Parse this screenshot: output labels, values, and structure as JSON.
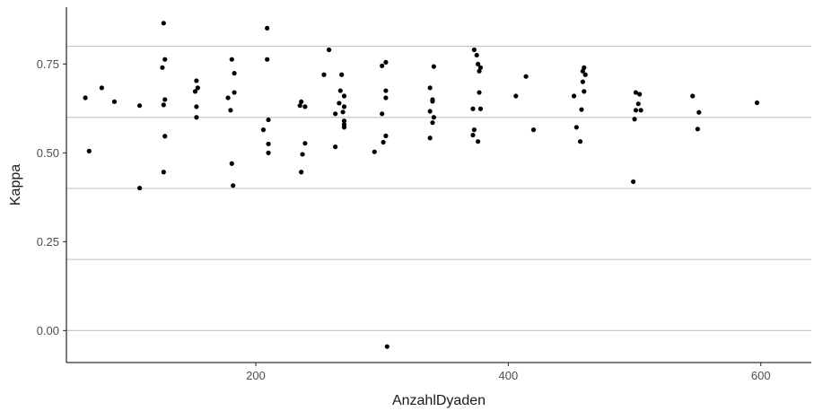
{
  "chart_data": {
    "type": "scatter",
    "xlabel": "AnzahlDyaden",
    "ylabel": "Kappa",
    "xlim": [
      50,
      640
    ],
    "ylim": [
      -0.09,
      0.91
    ],
    "x_ticks": [
      200,
      400,
      600
    ],
    "x_tick_labels": [
      "200",
      "400",
      "600"
    ],
    "y_ticks": [
      0.0,
      0.25,
      0.5,
      0.75
    ],
    "y_tick_labels": [
      "0.00",
      "0.25",
      "0.50",
      "0.75"
    ],
    "hlines": [
      0.0,
      0.2,
      0.4,
      0.6,
      0.8
    ],
    "grid": false,
    "point_color": "#000000",
    "line_color": "#c8c8c8",
    "points": [
      {
        "x": 65,
        "y": 0.655
      },
      {
        "x": 68,
        "y": 0.505
      },
      {
        "x": 78,
        "y": 0.683
      },
      {
        "x": 88,
        "y": 0.644
      },
      {
        "x": 108,
        "y": 0.633
      },
      {
        "x": 108,
        "y": 0.401
      },
      {
        "x": 127,
        "y": 0.865
      },
      {
        "x": 128,
        "y": 0.763
      },
      {
        "x": 126,
        "y": 0.74
      },
      {
        "x": 128,
        "y": 0.65
      },
      {
        "x": 127,
        "y": 0.635
      },
      {
        "x": 128,
        "y": 0.547
      },
      {
        "x": 127,
        "y": 0.446
      },
      {
        "x": 153,
        "y": 0.703
      },
      {
        "x": 154,
        "y": 0.683
      },
      {
        "x": 152,
        "y": 0.673
      },
      {
        "x": 153,
        "y": 0.63
      },
      {
        "x": 153,
        "y": 0.6
      },
      {
        "x": 178,
        "y": 0.655
      },
      {
        "x": 180,
        "y": 0.62
      },
      {
        "x": 181,
        "y": 0.763
      },
      {
        "x": 183,
        "y": 0.724
      },
      {
        "x": 183,
        "y": 0.67
      },
      {
        "x": 181,
        "y": 0.47
      },
      {
        "x": 182,
        "y": 0.408
      },
      {
        "x": 209,
        "y": 0.851
      },
      {
        "x": 209,
        "y": 0.763
      },
      {
        "x": 210,
        "y": 0.593
      },
      {
        "x": 206,
        "y": 0.565
      },
      {
        "x": 210,
        "y": 0.525
      },
      {
        "x": 210,
        "y": 0.5
      },
      {
        "x": 235,
        "y": 0.633
      },
      {
        "x": 236,
        "y": 0.644
      },
      {
        "x": 239,
        "y": 0.63
      },
      {
        "x": 239,
        "y": 0.527
      },
      {
        "x": 237,
        "y": 0.496
      },
      {
        "x": 236,
        "y": 0.446
      },
      {
        "x": 254,
        "y": 0.72
      },
      {
        "x": 258,
        "y": 0.79
      },
      {
        "x": 263,
        "y": 0.61
      },
      {
        "x": 263,
        "y": 0.517
      },
      {
        "x": 268,
        "y": 0.72
      },
      {
        "x": 267,
        "y": 0.675
      },
      {
        "x": 270,
        "y": 0.66
      },
      {
        "x": 266,
        "y": 0.64
      },
      {
        "x": 270,
        "y": 0.63
      },
      {
        "x": 269,
        "y": 0.615
      },
      {
        "x": 270,
        "y": 0.59
      },
      {
        "x": 270,
        "y": 0.58
      },
      {
        "x": 270,
        "y": 0.572
      },
      {
        "x": 300,
        "y": 0.745
      },
      {
        "x": 303,
        "y": 0.755
      },
      {
        "x": 303,
        "y": 0.675
      },
      {
        "x": 303,
        "y": 0.655
      },
      {
        "x": 300,
        "y": 0.61
      },
      {
        "x": 303,
        "y": 0.548
      },
      {
        "x": 301,
        "y": 0.53
      },
      {
        "x": 294,
        "y": 0.503
      },
      {
        "x": 304,
        "y": -0.045
      },
      {
        "x": 338,
        "y": 0.683
      },
      {
        "x": 341,
        "y": 0.743
      },
      {
        "x": 340,
        "y": 0.65
      },
      {
        "x": 340,
        "y": 0.645
      },
      {
        "x": 338,
        "y": 0.617
      },
      {
        "x": 341,
        "y": 0.6
      },
      {
        "x": 340,
        "y": 0.585
      },
      {
        "x": 338,
        "y": 0.542
      },
      {
        "x": 373,
        "y": 0.79
      },
      {
        "x": 375,
        "y": 0.775
      },
      {
        "x": 376,
        "y": 0.75
      },
      {
        "x": 378,
        "y": 0.74
      },
      {
        "x": 377,
        "y": 0.73
      },
      {
        "x": 377,
        "y": 0.67
      },
      {
        "x": 372,
        "y": 0.624
      },
      {
        "x": 378,
        "y": 0.624
      },
      {
        "x": 373,
        "y": 0.565
      },
      {
        "x": 372,
        "y": 0.55
      },
      {
        "x": 376,
        "y": 0.532
      },
      {
        "x": 406,
        "y": 0.66
      },
      {
        "x": 414,
        "y": 0.715
      },
      {
        "x": 420,
        "y": 0.565
      },
      {
        "x": 452,
        "y": 0.66
      },
      {
        "x": 454,
        "y": 0.572
      },
      {
        "x": 457,
        "y": 0.532
      },
      {
        "x": 458,
        "y": 0.622
      },
      {
        "x": 460,
        "y": 0.74
      },
      {
        "x": 459,
        "y": 0.73
      },
      {
        "x": 461,
        "y": 0.72
      },
      {
        "x": 459,
        "y": 0.7
      },
      {
        "x": 460,
        "y": 0.673
      },
      {
        "x": 501,
        "y": 0.67
      },
      {
        "x": 504,
        "y": 0.665
      },
      {
        "x": 503,
        "y": 0.638
      },
      {
        "x": 501,
        "y": 0.62
      },
      {
        "x": 505,
        "y": 0.62
      },
      {
        "x": 500,
        "y": 0.595
      },
      {
        "x": 499,
        "y": 0.419
      },
      {
        "x": 546,
        "y": 0.66
      },
      {
        "x": 551,
        "y": 0.614
      },
      {
        "x": 550,
        "y": 0.567
      },
      {
        "x": 597,
        "y": 0.641
      }
    ]
  }
}
